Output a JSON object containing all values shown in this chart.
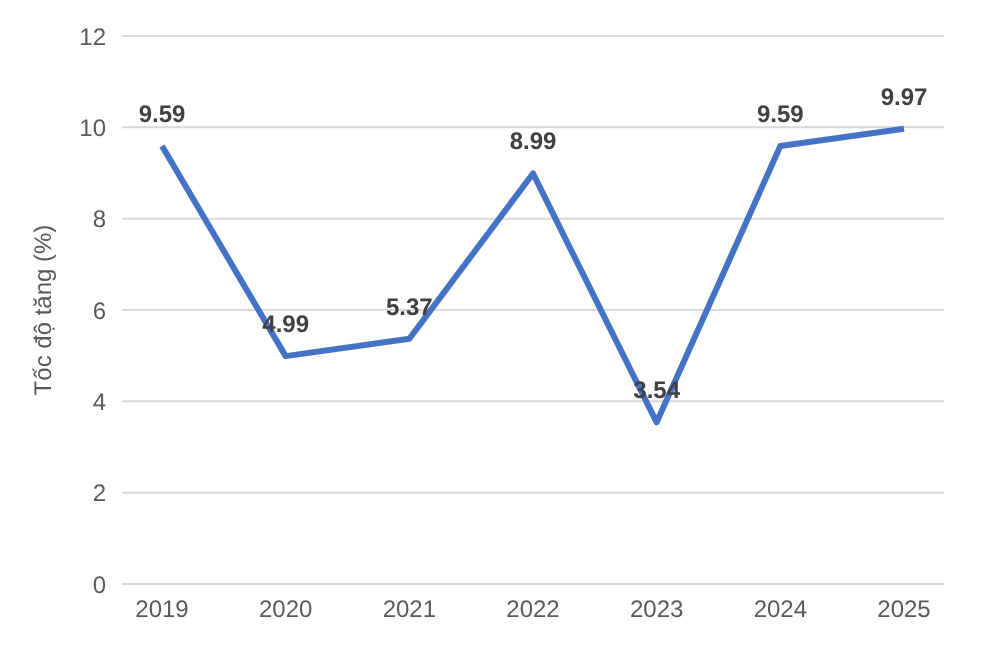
{
  "chart_data": {
    "type": "line",
    "ylabel": "Tốc độ tăng (%)",
    "categories": [
      "2019",
      "2020",
      "2021",
      "2022",
      "2023",
      "2024",
      "2025"
    ],
    "series": [
      {
        "color": "#4472c4",
        "values": [
          9.59,
          4.99,
          5.37,
          8.99,
          3.54,
          9.59,
          9.97
        ]
      }
    ],
    "ylim": [
      0,
      12
    ],
    "yticks": [
      0,
      2,
      4,
      6,
      8,
      10,
      12
    ],
    "grid": "y",
    "data_labels": true,
    "marker": "none",
    "line_style": "solid",
    "legend": false
  }
}
